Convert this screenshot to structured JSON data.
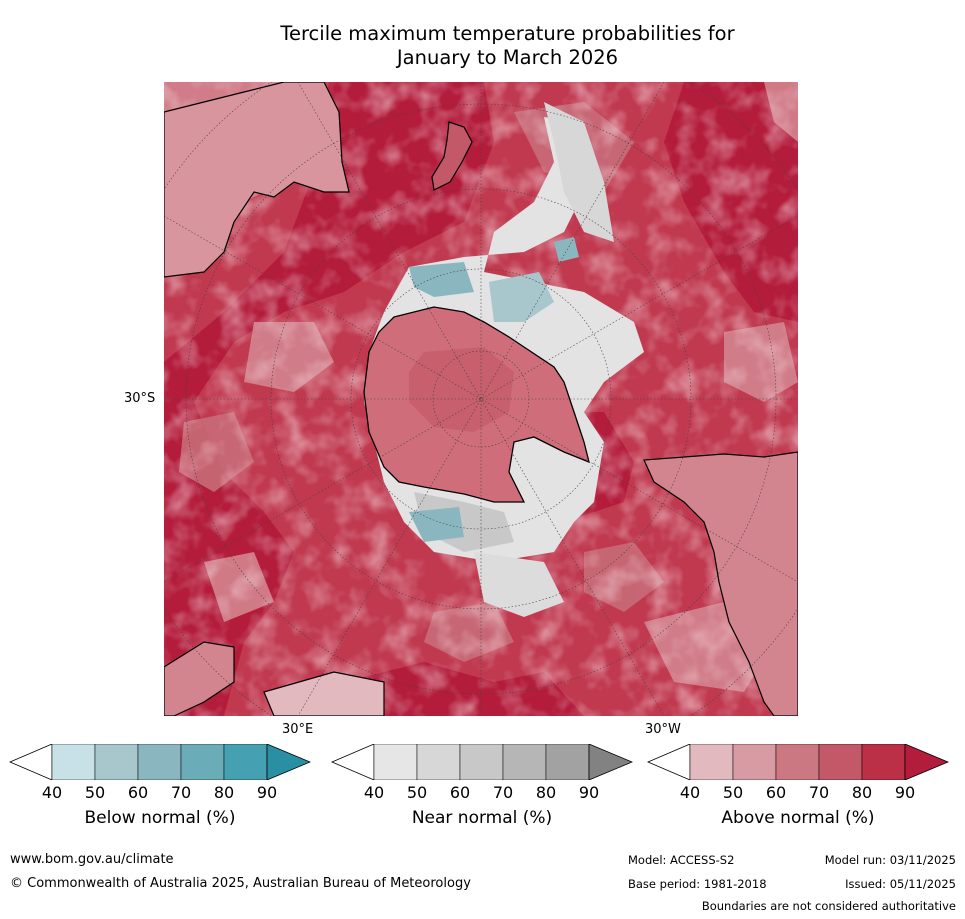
{
  "title": {
    "line1": "Tercile maximum temperature probabilities for",
    "line2": "January to March 2026"
  },
  "map": {
    "lat_label": "30°S",
    "lon_label_east": "30°E",
    "lon_label_west": "30°W",
    "colors": {
      "above": [
        "#e2b9be",
        "#d89aa3",
        "#cc7883",
        "#c35968",
        "#bc3047",
        "#b31c3b"
      ],
      "near": [
        "#e6e6e6",
        "#d7d7d7",
        "#c8c8c8",
        "#b6b6b6",
        "#a2a2a2",
        "#828282"
      ],
      "below": [
        "#c7e1e6",
        "#a7c7cd",
        "#8ab7bf",
        "#6aacb8",
        "#45a1b1",
        "#2b8fa4"
      ],
      "land": "#000000"
    }
  },
  "colorbars": [
    {
      "name": "below",
      "label": "Below normal (%)",
      "ticks": [
        "40",
        "50",
        "60",
        "70",
        "80",
        "90"
      ],
      "colors": [
        "#c7e1e6",
        "#a7c7cd",
        "#8ab7bf",
        "#6aacb8",
        "#45a1b1",
        "#2b8fa4"
      ]
    },
    {
      "name": "near",
      "label": "Near normal (%)",
      "ticks": [
        "40",
        "50",
        "60",
        "70",
        "80",
        "90"
      ],
      "colors": [
        "#e6e6e6",
        "#d7d7d7",
        "#c8c8c8",
        "#b6b6b6",
        "#a2a2a2",
        "#828282"
      ]
    },
    {
      "name": "above",
      "label": "Above normal (%)",
      "ticks": [
        "40",
        "50",
        "60",
        "70",
        "80",
        "90"
      ],
      "colors": [
        "#e2b9be",
        "#d89aa3",
        "#cc7883",
        "#c35968",
        "#bc3047",
        "#b31c3b"
      ]
    }
  ],
  "footer": {
    "website": "www.bom.gov.au/climate",
    "copyright": "© Commonwealth of Australia 2025, Australian Bureau of Meteorology",
    "model": "Model: ACCESS-S2",
    "base_period": "Base period: 1981-2018",
    "model_run": "Model run: 03/11/2025",
    "issued": "Issued: 05/11/2025",
    "boundaries": "Boundaries are not considered authoritative"
  }
}
